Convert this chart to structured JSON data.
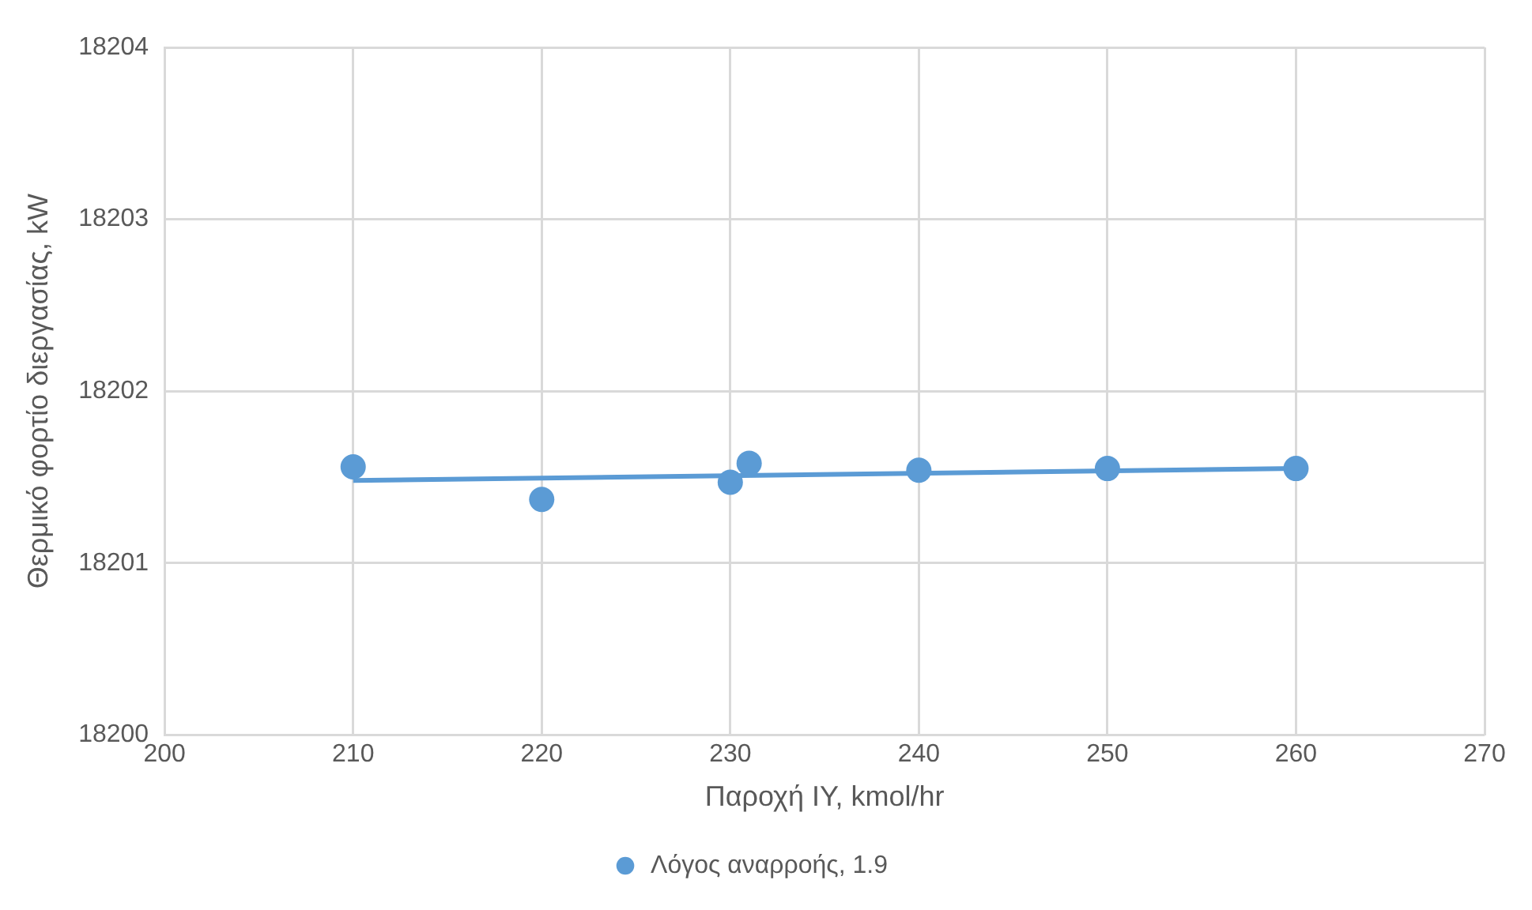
{
  "chart_data": {
    "type": "scatter",
    "xlabel": "Παροχή ΙΥ, kmol/hr",
    "ylabel": "Θερμικό φορτίο διεργασίας, kW",
    "xlim": [
      200,
      270
    ],
    "xticks": [
      200,
      210,
      220,
      230,
      240,
      250,
      260,
      270
    ],
    "ylim": [
      18200,
      18204
    ],
    "yticks": [
      18200,
      18201,
      18202,
      18203,
      18204
    ],
    "grid": true,
    "legend": "bottom",
    "marker": "circle",
    "series": [
      {
        "name": "Λόγος αναρροής, 1.9",
        "color": "#5b9bd5",
        "x": [
          210,
          220,
          230,
          231,
          240,
          250,
          260
        ],
        "values": [
          18201.56,
          18201.37,
          18201.47,
          18201.58,
          18201.54,
          18201.55,
          18201.55
        ]
      },
      {
        "type": "line",
        "marker": "none",
        "color": "#5b9bd5",
        "x": [
          210,
          260
        ],
        "values": [
          18201.48,
          18201.55
        ]
      }
    ]
  }
}
